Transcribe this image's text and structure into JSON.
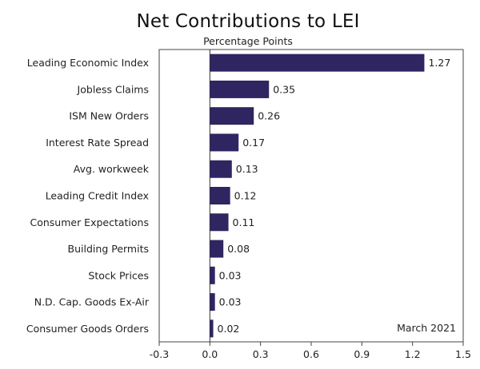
{
  "chart_data": {
    "type": "bar",
    "orientation": "horizontal",
    "title": "Net Contributions to LEI",
    "subtitle": "Percentage Points",
    "annotation": "March 2021",
    "categories": [
      "Leading Economic Index",
      "Jobless Claims",
      "ISM New Orders",
      "Interest Rate Spread",
      "Avg. workweek",
      "Leading Credit Index",
      "Consumer Expectations",
      "Building Permits",
      "Stock Prices",
      "N.D. Cap. Goods Ex-Air",
      "Consumer Goods Orders"
    ],
    "values": [
      1.27,
      0.35,
      0.26,
      0.17,
      0.13,
      0.12,
      0.11,
      0.08,
      0.03,
      0.03,
      0.02
    ],
    "value_labels": [
      "1.27",
      "0.35",
      "0.26",
      "0.17",
      "0.13",
      "0.12",
      "0.11",
      "0.08",
      "0.03",
      "0.03",
      "0.02"
    ],
    "xlim": [
      -0.3,
      1.5
    ],
    "xticks": [
      -0.3,
      0.0,
      0.3,
      0.6,
      0.9,
      1.2,
      1.5
    ],
    "xtick_labels": [
      "-0.3",
      "0.0",
      "0.3",
      "0.6",
      "0.9",
      "1.2",
      "1.5"
    ],
    "bar_color": "#2e2561",
    "grid": false,
    "legend": "none"
  }
}
